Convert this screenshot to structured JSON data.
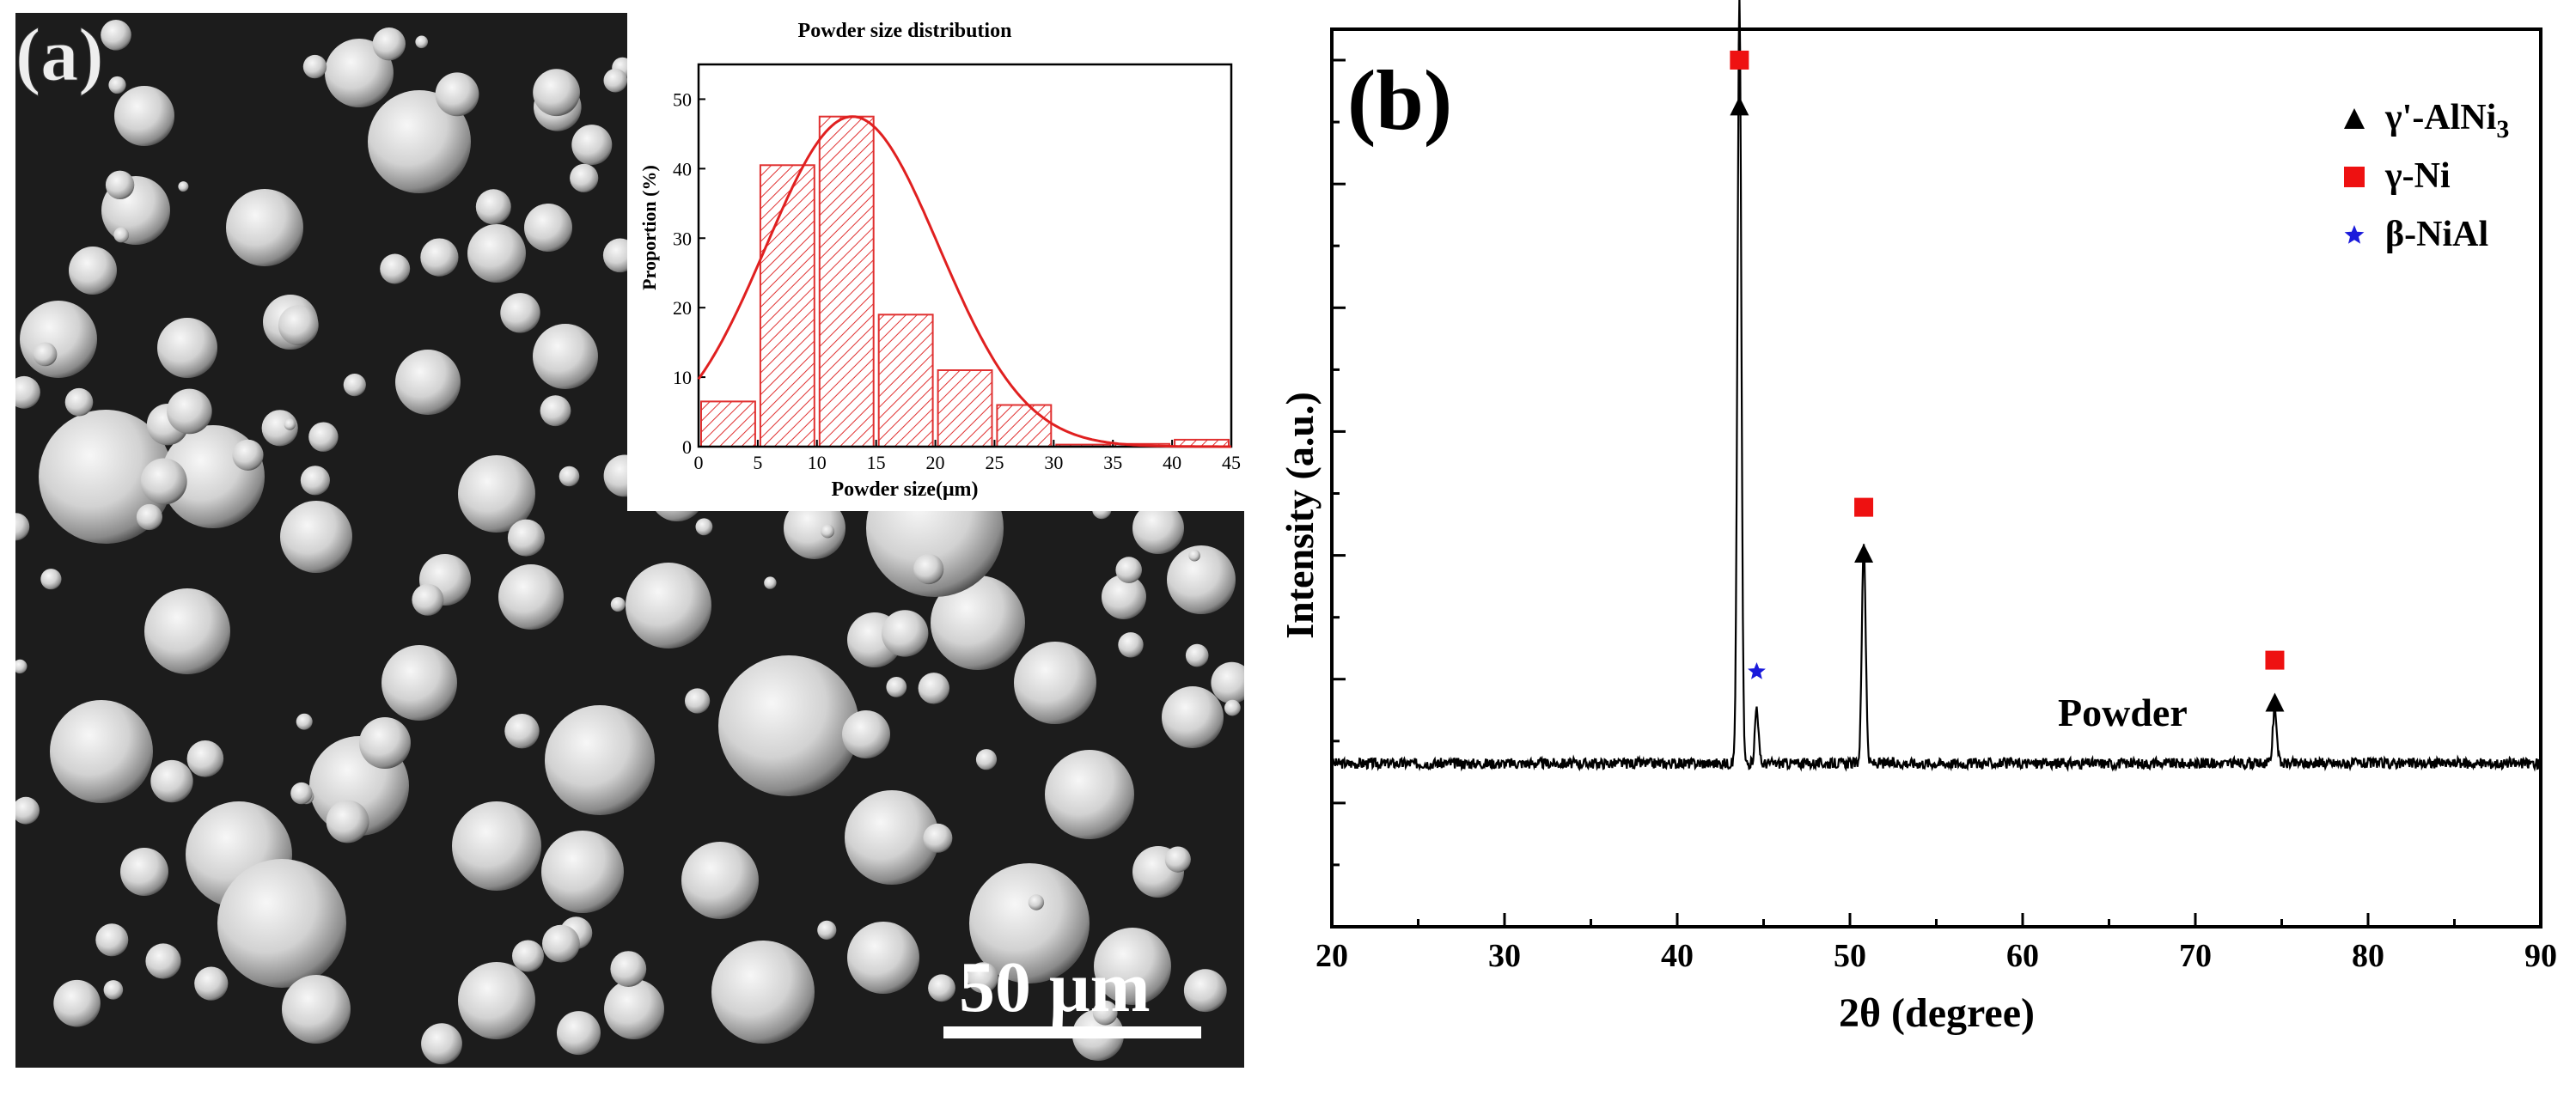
{
  "panel_a": {
    "label": "(a)",
    "scale_bar_text": "50 μm",
    "colors": {
      "background": "#1a1a1a",
      "particle_light": "#f4f4f4",
      "particle_mid": "#c8c8c8",
      "particle_dark": "#5e5e5e",
      "scale_bar": "#ffffff"
    }
  },
  "panel_b": {
    "label": "(b)",
    "sample_label": "Powder"
  },
  "chart_data": [
    {
      "id": "powder-size-histogram",
      "type": "bar",
      "title": "Powder size distribution",
      "xlabel": "Powder size(μm)",
      "ylabel": "Proportion (%)",
      "xlim": [
        0,
        45
      ],
      "ylim": [
        0,
        55
      ],
      "xticks": [
        0,
        5,
        10,
        15,
        20,
        25,
        30,
        35,
        40,
        45
      ],
      "yticks": [
        0,
        10,
        20,
        30,
        40,
        50
      ],
      "bins": [
        {
          "start": 0,
          "end": 5,
          "value": 6.5
        },
        {
          "start": 5,
          "end": 10,
          "value": 40.5
        },
        {
          "start": 10,
          "end": 15,
          "value": 47.5
        },
        {
          "start": 15,
          "end": 20,
          "value": 19
        },
        {
          "start": 20,
          "end": 25,
          "value": 11
        },
        {
          "start": 25,
          "end": 30,
          "value": 6
        },
        {
          "start": 30,
          "end": 35,
          "value": 0.3
        },
        {
          "start": 35,
          "end": 40,
          "value": 0.4
        },
        {
          "start": 40,
          "end": 45,
          "value": 1
        }
      ],
      "fit": {
        "type": "gaussian",
        "peak_x": 13,
        "peak_y": 47.5,
        "sigma": 7.3
      },
      "bar_color": "#e03030",
      "fit_color": "#e02020",
      "fill_pattern": "diagonal-hatch"
    },
    {
      "id": "xrd-pattern",
      "type": "line",
      "xlabel": "2θ (degree)",
      "ylabel": "Intensity (a.u.)",
      "xlim": [
        20,
        90
      ],
      "ylim": [
        0,
        100
      ],
      "xticks": [
        20,
        30,
        40,
        50,
        60,
        70,
        80,
        90
      ],
      "yticks_labeled": false,
      "baseline": 12.5,
      "noise_amplitude": 0.7,
      "series": [
        {
          "name": "Powder",
          "color": "#000000",
          "peaks": [
            {
              "x": 43.6,
              "height": 100,
              "width": 0.22
            },
            {
              "x": 44.6,
              "height": 7.5,
              "width": 0.2
            },
            {
              "x": 50.8,
              "height": 29,
              "width": 0.22
            },
            {
              "x": 74.6,
              "height": 7.5,
              "width": 0.22
            }
          ]
        }
      ],
      "markers": [
        {
          "x": 43.6,
          "y": 104.5,
          "symbol": "square",
          "phase": "γ-Ni"
        },
        {
          "x": 43.6,
          "y": 98.5,
          "symbol": "triangle",
          "phase": "γ'-AlNi3"
        },
        {
          "x": 44.6,
          "y": 24.5,
          "symbol": "star",
          "phase": "β-NiAl"
        },
        {
          "x": 50.8,
          "y": 46,
          "symbol": "square",
          "phase": "γ-Ni"
        },
        {
          "x": 50.8,
          "y": 40,
          "symbol": "triangle",
          "phase": "γ'-AlNi3"
        },
        {
          "x": 74.6,
          "y": 26,
          "symbol": "square",
          "phase": "γ-Ni"
        },
        {
          "x": 74.6,
          "y": 20.5,
          "symbol": "triangle",
          "phase": "γ'-AlNi3"
        }
      ],
      "legend": {
        "position": "top-right",
        "entries": [
          {
            "symbol": "triangle",
            "color": "#000000",
            "label": "γ'-AlNi",
            "subscript": "3"
          },
          {
            "symbol": "square",
            "color": "#ee1111",
            "label": "γ-Ni",
            "subscript": ""
          },
          {
            "symbol": "star",
            "color": "#1a1adb",
            "label": "β-NiAl",
            "subscript": ""
          }
        ]
      },
      "colors": {
        "triangle": "#000000",
        "square": "#ee1111",
        "star": "#1a1adb"
      }
    }
  ]
}
